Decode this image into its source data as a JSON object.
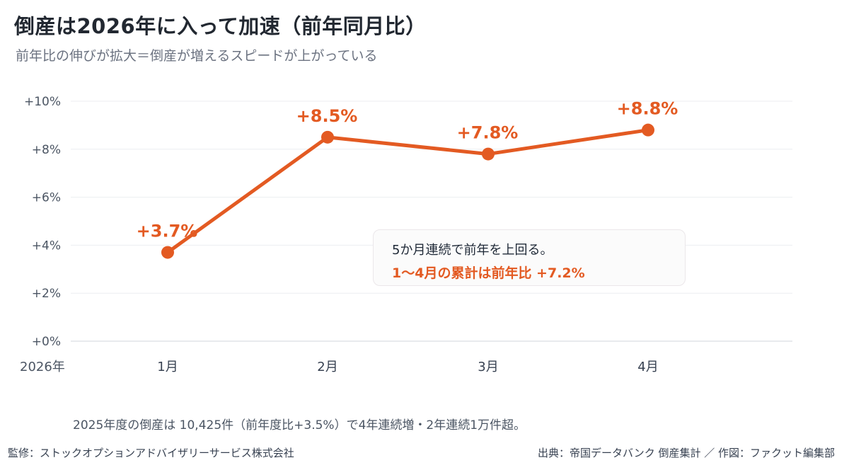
{
  "header": {
    "title": "倒産は2026年に入って加速（前年同月比）",
    "subtitle": "前年比の伸びが拡大＝倒産が増えるスピードが上がっている"
  },
  "chart_data": {
    "type": "line",
    "x_axis_year_label": "2026年",
    "categories": [
      "1月",
      "2月",
      "3月",
      "4月"
    ],
    "values": [
      3.7,
      8.5,
      7.8,
      8.8
    ],
    "data_labels": [
      "+3.7%",
      "+8.5%",
      "+7.8%",
      "+8.8%"
    ],
    "y_ticks": [
      0,
      2,
      4,
      6,
      8,
      10
    ],
    "y_tick_labels": [
      "+0%",
      "+2%",
      "+4%",
      "+6%",
      "+8%",
      "+10%"
    ],
    "ylim": [
      0,
      10
    ],
    "grid": true,
    "line_color": "#e35a22",
    "label_color": "#e35a22"
  },
  "callout": {
    "line1": "5か月連続で前年を上回る。",
    "line2": "1〜4月の累計は前年比 +7.2%"
  },
  "note": "2025年度の倒産は 10,425件（前年度比+3.5%）で4年連続増・2年連続1万件超。",
  "footer": {
    "left": "監修：ストックオプションアドバイザリーサービス株式会社",
    "right": "出典：帝国データバンク 倒産集計 ／ 作図：ファクット編集部"
  }
}
